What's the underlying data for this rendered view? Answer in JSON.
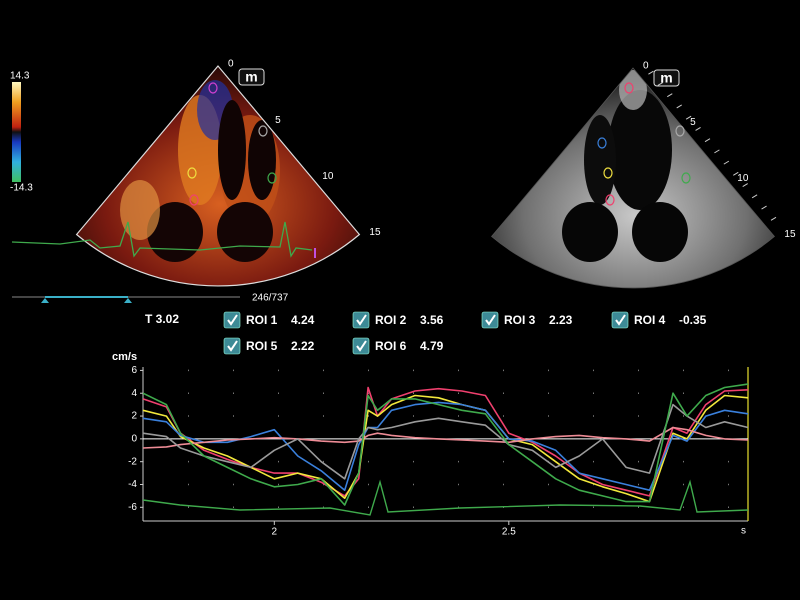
{
  "color_scale": {
    "max_label": "14.3",
    "min_label": "-14.3"
  },
  "left_image": {
    "badge": "m",
    "depth_labels": [
      0,
      5,
      10,
      15
    ]
  },
  "right_image": {
    "badge": "m",
    "depth_labels": [
      0,
      5,
      10,
      15
    ]
  },
  "status": {
    "frame": "246/737",
    "time": "T 3.02"
  },
  "chart_data": {
    "type": "line",
    "y_label": "cm/s",
    "x_label": "s",
    "x": [
      1.72,
      1.77,
      1.8,
      1.85,
      1.9,
      1.95,
      2.0,
      2.05,
      2.1,
      2.15,
      2.18,
      2.2,
      2.22,
      2.25,
      2.3,
      2.35,
      2.4,
      2.45,
      2.5,
      2.55,
      2.6,
      2.65,
      2.7,
      2.75,
      2.8,
      2.85,
      2.88,
      2.92,
      2.96,
      3.01
    ],
    "xlim": [
      1.72,
      3.01
    ],
    "xticks": [
      2,
      2.5
    ],
    "ylim": [
      -7.2,
      6.3
    ],
    "yticks": [
      6,
      4,
      2,
      0,
      -2,
      -4,
      -6
    ],
    "grid": true,
    "series": [
      {
        "name": "ROI 1",
        "readout": "4.24",
        "color": "#f0406e",
        "values": [
          3.5,
          2.8,
          0.5,
          -1.0,
          -1.8,
          -2.5,
          -3.0,
          -3.0,
          -3.8,
          -5.0,
          -3.5,
          4.5,
          2.0,
          3.5,
          4.2,
          4.4,
          4.2,
          3.8,
          0.5,
          -0.3,
          -1.5,
          -3.0,
          -4.0,
          -4.5,
          -5.0,
          1.0,
          0.5,
          3.0,
          4.2,
          4.3
        ]
      },
      {
        "name": "ROI 2",
        "readout": "3.56",
        "color": "#f2e83c",
        "values": [
          2.5,
          2.0,
          0.2,
          -0.8,
          -1.5,
          -2.5,
          -3.5,
          -3.0,
          -3.5,
          -5.2,
          -3.0,
          2.5,
          2.0,
          3.0,
          3.8,
          3.6,
          3.0,
          2.5,
          0,
          -0.5,
          -2.0,
          -3.5,
          -4.2,
          -4.8,
          -5.5,
          0.5,
          0,
          2.5,
          3.8,
          3.6
        ]
      },
      {
        "name": "ROI 3",
        "readout": "2.23",
        "color": "#3a80dc",
        "values": [
          1.8,
          1.5,
          0.3,
          -0.3,
          -0.3,
          0.2,
          0.8,
          -1.5,
          -2.8,
          -4.5,
          -0.5,
          1.0,
          1.0,
          2.5,
          3.0,
          3.2,
          3.0,
          2.5,
          0,
          -0.2,
          -1.0,
          -3.0,
          -3.5,
          -4.0,
          -4.5,
          0.3,
          -0.2,
          2.0,
          2.5,
          2.2
        ]
      },
      {
        "name": "ROI 4",
        "readout": "-0.35",
        "color": "#ee8c96",
        "values": [
          -0.8,
          -0.7,
          -0.5,
          -0.3,
          -0.1,
          0,
          0.1,
          0,
          -0.2,
          -0.3,
          -0.2,
          0.3,
          0.5,
          0.3,
          0.1,
          0,
          -0.1,
          -0.2,
          -0.3,
          0,
          0.2,
          0.3,
          0.1,
          0,
          -0.2,
          1.0,
          0.8,
          0.3,
          0,
          -0.1
        ]
      },
      {
        "name": "ROI 5",
        "readout": "2.22",
        "color": "#9a9a9a",
        "values": [
          0.5,
          0.2,
          -0.8,
          -1.5,
          -2.0,
          -2.5,
          -1.0,
          0,
          -2.0,
          -3.5,
          0,
          1.0,
          0.8,
          1.0,
          1.5,
          1.8,
          1.5,
          1.2,
          -0.5,
          -1.0,
          -2.5,
          -1.5,
          0,
          -2.5,
          -3.0,
          3.0,
          2.0,
          1.0,
          1.5,
          1.0
        ]
      },
      {
        "name": "ROI 6",
        "readout": "4.79",
        "color": "#3faa4c",
        "values": [
          4.0,
          3.0,
          0.5,
          -1.5,
          -2.5,
          -3.5,
          -4.2,
          -4.0,
          -3.5,
          -5.8,
          -3.0,
          3.8,
          2.5,
          3.5,
          3.5,
          3.0,
          2.5,
          2.2,
          -0.5,
          -2.0,
          -3.5,
          -4.5,
          -5.0,
          -5.5,
          -5.5,
          4.0,
          2.0,
          3.8,
          4.5,
          4.8
        ]
      }
    ]
  }
}
